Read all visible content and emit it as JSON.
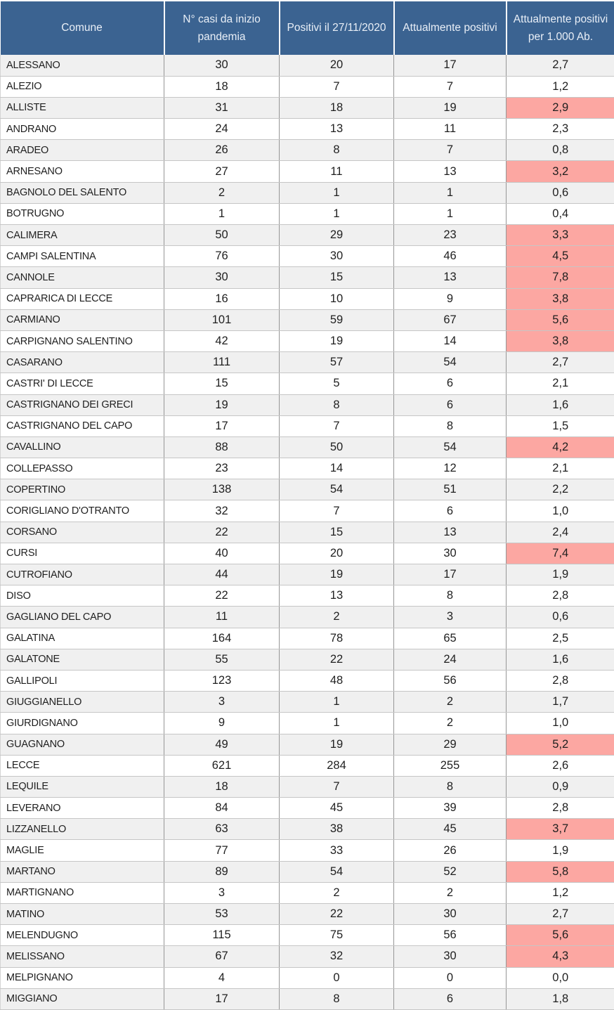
{
  "colors": {
    "header_bg": "#3B6391",
    "header_text": "#E9EFF7",
    "row_stripe": "#F0F0F0",
    "row_white": "#FFFFFF",
    "highlight": "#FCA7A2",
    "border_vertical": "#969696",
    "border_horizontal": "#C6C6C6",
    "text": "#1F1F1F"
  },
  "table": {
    "columns": [
      "Comune",
      "N° casi da inizio pandemia",
      "Positivi il 27/11/2020",
      "Attualmente positivi",
      "Attualmente positivi per 1.000 Ab."
    ],
    "rows": [
      {
        "comune": "ALESSANO",
        "casi": "30",
        "pos27": "20",
        "attuali": "17",
        "per1000": "2,7",
        "hl": false
      },
      {
        "comune": "ALEZIO",
        "casi": "18",
        "pos27": "7",
        "attuali": "7",
        "per1000": "1,2",
        "hl": false
      },
      {
        "comune": "ALLISTE",
        "casi": "31",
        "pos27": "18",
        "attuali": "19",
        "per1000": "2,9",
        "hl": true
      },
      {
        "comune": "ANDRANO",
        "casi": "24",
        "pos27": "13",
        "attuali": "11",
        "per1000": "2,3",
        "hl": false
      },
      {
        "comune": "ARADEO",
        "casi": "26",
        "pos27": "8",
        "attuali": "7",
        "per1000": "0,8",
        "hl": false
      },
      {
        "comune": "ARNESANO",
        "casi": "27",
        "pos27": "11",
        "attuali": "13",
        "per1000": "3,2",
        "hl": true
      },
      {
        "comune": "BAGNOLO DEL SALENTO",
        "casi": "2",
        "pos27": "1",
        "attuali": "1",
        "per1000": "0,6",
        "hl": false
      },
      {
        "comune": "BOTRUGNO",
        "casi": "1",
        "pos27": "1",
        "attuali": "1",
        "per1000": "0,4",
        "hl": false
      },
      {
        "comune": "CALIMERA",
        "casi": "50",
        "pos27": "29",
        "attuali": "23",
        "per1000": "3,3",
        "hl": true
      },
      {
        "comune": "CAMPI SALENTINA",
        "casi": "76",
        "pos27": "30",
        "attuali": "46",
        "per1000": "4,5",
        "hl": true
      },
      {
        "comune": "CANNOLE",
        "casi": "30",
        "pos27": "15",
        "attuali": "13",
        "per1000": "7,8",
        "hl": true
      },
      {
        "comune": "CAPRARICA DI LECCE",
        "casi": "16",
        "pos27": "10",
        "attuali": "9",
        "per1000": "3,8",
        "hl": true
      },
      {
        "comune": "CARMIANO",
        "casi": "101",
        "pos27": "59",
        "attuali": "67",
        "per1000": "5,6",
        "hl": true
      },
      {
        "comune": "CARPIGNANO SALENTINO",
        "casi": "42",
        "pos27": "19",
        "attuali": "14",
        "per1000": "3,8",
        "hl": true
      },
      {
        "comune": "CASARANO",
        "casi": "111",
        "pos27": "57",
        "attuali": "54",
        "per1000": "2,7",
        "hl": false
      },
      {
        "comune": "CASTRI' DI LECCE",
        "casi": "15",
        "pos27": "5",
        "attuali": "6",
        "per1000": "2,1",
        "hl": false
      },
      {
        "comune": "CASTRIGNANO DEI GRECI",
        "casi": "19",
        "pos27": "8",
        "attuali": "6",
        "per1000": "1,6",
        "hl": false
      },
      {
        "comune": "CASTRIGNANO DEL CAPO",
        "casi": "17",
        "pos27": "7",
        "attuali": "8",
        "per1000": "1,5",
        "hl": false
      },
      {
        "comune": "CAVALLINO",
        "casi": "88",
        "pos27": "50",
        "attuali": "54",
        "per1000": "4,2",
        "hl": true
      },
      {
        "comune": "COLLEPASSO",
        "casi": "23",
        "pos27": "14",
        "attuali": "12",
        "per1000": "2,1",
        "hl": false
      },
      {
        "comune": "COPERTINO",
        "casi": "138",
        "pos27": "54",
        "attuali": "51",
        "per1000": "2,2",
        "hl": false
      },
      {
        "comune": "CORIGLIANO D'OTRANTO",
        "casi": "32",
        "pos27": "7",
        "attuali": "6",
        "per1000": "1,0",
        "hl": false
      },
      {
        "comune": "CORSANO",
        "casi": "22",
        "pos27": "15",
        "attuali": "13",
        "per1000": "2,4",
        "hl": false
      },
      {
        "comune": "CURSI",
        "casi": "40",
        "pos27": "20",
        "attuali": "30",
        "per1000": "7,4",
        "hl": true
      },
      {
        "comune": "CUTROFIANO",
        "casi": "44",
        "pos27": "19",
        "attuali": "17",
        "per1000": "1,9",
        "hl": false
      },
      {
        "comune": "DISO",
        "casi": "22",
        "pos27": "13",
        "attuali": "8",
        "per1000": "2,8",
        "hl": false
      },
      {
        "comune": "GAGLIANO DEL CAPO",
        "casi": "11",
        "pos27": "2",
        "attuali": "3",
        "per1000": "0,6",
        "hl": false
      },
      {
        "comune": "GALATINA",
        "casi": "164",
        "pos27": "78",
        "attuali": "65",
        "per1000": "2,5",
        "hl": false
      },
      {
        "comune": "GALATONE",
        "casi": "55",
        "pos27": "22",
        "attuali": "24",
        "per1000": "1,6",
        "hl": false
      },
      {
        "comune": "GALLIPOLI",
        "casi": "123",
        "pos27": "48",
        "attuali": "56",
        "per1000": "2,8",
        "hl": false
      },
      {
        "comune": "GIUGGIANELLO",
        "casi": "3",
        "pos27": "1",
        "attuali": "2",
        "per1000": "1,7",
        "hl": false
      },
      {
        "comune": "GIURDIGNANO",
        "casi": "9",
        "pos27": "1",
        "attuali": "2",
        "per1000": "1,0",
        "hl": false
      },
      {
        "comune": "GUAGNANO",
        "casi": "49",
        "pos27": "19",
        "attuali": "29",
        "per1000": "5,2",
        "hl": true
      },
      {
        "comune": "LECCE",
        "casi": "621",
        "pos27": "284",
        "attuali": "255",
        "per1000": "2,6",
        "hl": false
      },
      {
        "comune": "LEQUILE",
        "casi": "18",
        "pos27": "7",
        "attuali": "8",
        "per1000": "0,9",
        "hl": false
      },
      {
        "comune": "LEVERANO",
        "casi": "84",
        "pos27": "45",
        "attuali": "39",
        "per1000": "2,8",
        "hl": false
      },
      {
        "comune": "LIZZANELLO",
        "casi": "63",
        "pos27": "38",
        "attuali": "45",
        "per1000": "3,7",
        "hl": true
      },
      {
        "comune": "MAGLIE",
        "casi": "77",
        "pos27": "33",
        "attuali": "26",
        "per1000": "1,9",
        "hl": false
      },
      {
        "comune": "MARTANO",
        "casi": "89",
        "pos27": "54",
        "attuali": "52",
        "per1000": "5,8",
        "hl": true
      },
      {
        "comune": "MARTIGNANO",
        "casi": "3",
        "pos27": "2",
        "attuali": "2",
        "per1000": "1,2",
        "hl": false
      },
      {
        "comune": "MATINO",
        "casi": "53",
        "pos27": "22",
        "attuali": "30",
        "per1000": "2,7",
        "hl": false
      },
      {
        "comune": "MELENDUGNO",
        "casi": "115",
        "pos27": "75",
        "attuali": "56",
        "per1000": "5,6",
        "hl": true
      },
      {
        "comune": "MELISSANO",
        "casi": "67",
        "pos27": "32",
        "attuali": "30",
        "per1000": "4,3",
        "hl": true
      },
      {
        "comune": "MELPIGNANO",
        "casi": "4",
        "pos27": "0",
        "attuali": "0",
        "per1000": "0,0",
        "hl": false
      },
      {
        "comune": "MIGGIANO",
        "casi": "17",
        "pos27": "8",
        "attuali": "6",
        "per1000": "1,8",
        "hl": false
      }
    ]
  }
}
